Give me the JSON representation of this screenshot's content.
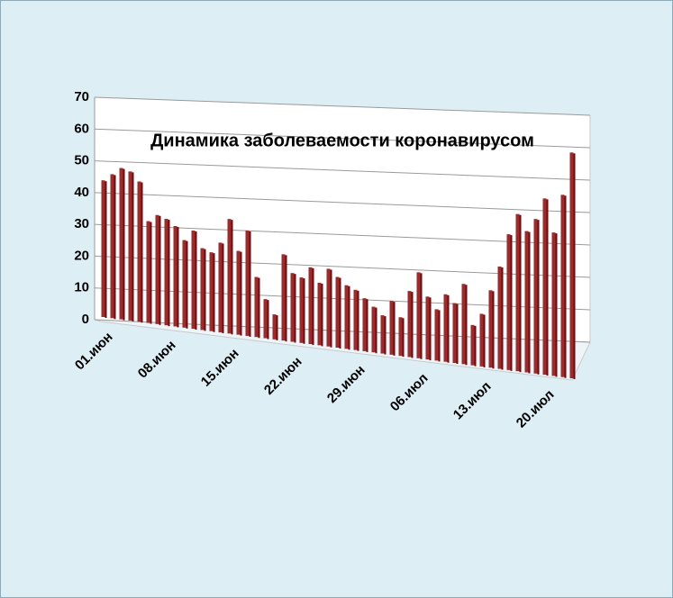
{
  "chart_data": {
    "type": "bar",
    "title": "Динамика заболеваемости коронавирусом",
    "categories": [
      "01.июн",
      null,
      null,
      null,
      null,
      null,
      null,
      "08.июн",
      null,
      null,
      null,
      null,
      null,
      null,
      "15.июн",
      null,
      null,
      null,
      null,
      null,
      null,
      "22.июн",
      null,
      null,
      null,
      null,
      null,
      null,
      "29.июн",
      null,
      null,
      null,
      null,
      null,
      null,
      "06.июл",
      null,
      null,
      null,
      null,
      null,
      null,
      "13.июл",
      null,
      null,
      null,
      null,
      null,
      null,
      "20.июл",
      null,
      null,
      null
    ],
    "values": [
      43,
      45,
      47,
      46,
      43,
      31,
      33,
      32,
      30,
      26,
      29,
      24,
      23,
      26,
      33,
      24,
      30,
      17,
      11,
      7,
      24,
      19,
      18,
      21,
      17,
      21,
      19,
      17,
      16,
      14,
      12,
      10,
      14,
      10,
      17,
      22,
      16,
      13,
      17,
      15,
      20,
      10,
      13,
      19,
      25,
      33,
      38,
      34,
      37,
      42,
      34,
      43,
      53
    ],
    "color": "#a3282a",
    "ylim": [
      0,
      70
    ],
    "yticks": [
      0,
      10,
      20,
      30,
      40,
      50,
      60,
      70
    ],
    "grid": true
  }
}
